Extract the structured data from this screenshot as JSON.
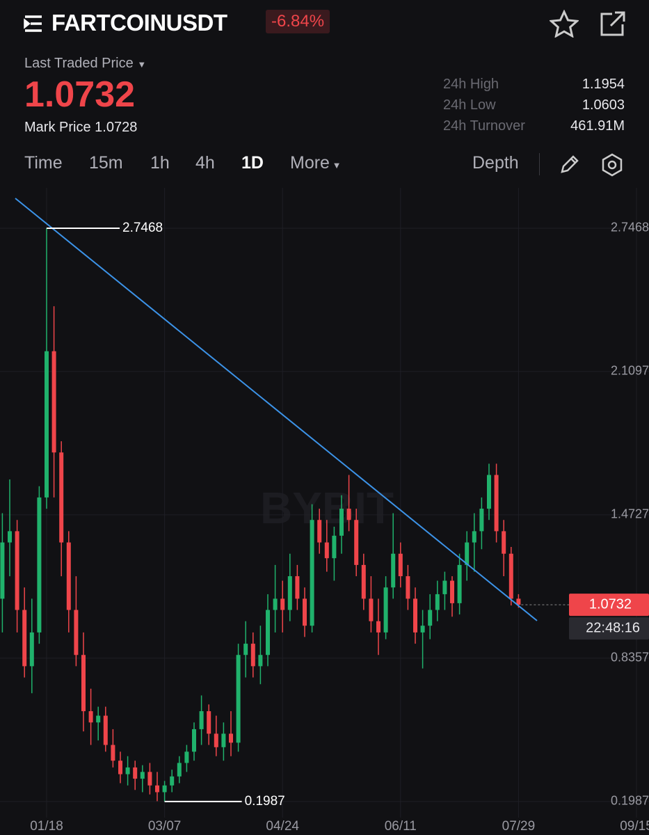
{
  "header": {
    "symbol": "FARTCOINUSDT",
    "change": "-6.84%",
    "price_label": "Last Traded Price",
    "last_price": "1.0732",
    "mark_label": "Mark Price",
    "mark_price": "1.0728"
  },
  "stats": [
    {
      "label": "24h High",
      "value": "1.1954"
    },
    {
      "label": "24h Low",
      "value": "1.0603"
    },
    {
      "label": "24h Turnover",
      "value": "461.91M"
    }
  ],
  "tabs": [
    "Time",
    "15m",
    "1h",
    "4h",
    "1D",
    "More",
    "Depth"
  ],
  "watermark": "BYBIT",
  "chart_data": {
    "type": "candlestick",
    "up_color": "#20b26c",
    "down_color": "#ef454a",
    "grid": true,
    "countdown": "22:48:16",
    "categories": [
      null,
      null,
      null,
      null,
      null,
      null,
      "01/18",
      null,
      null,
      null,
      null,
      null,
      null,
      null,
      null,
      null,
      null,
      null,
      null,
      null,
      null,
      null,
      "03/07",
      null,
      null,
      null,
      null,
      null,
      null,
      null,
      null,
      null,
      null,
      null,
      null,
      null,
      null,
      null,
      "04/24",
      null,
      null,
      null,
      null,
      null,
      null,
      null,
      null,
      null,
      null,
      null,
      null,
      null,
      null,
      null,
      "06/11",
      null,
      null,
      null,
      null,
      null,
      null,
      null,
      null,
      null,
      null,
      null,
      null,
      null,
      null,
      null,
      "07/29",
      null,
      null,
      null,
      null,
      null,
      null,
      null,
      null,
      null,
      null,
      null,
      null,
      null,
      null,
      null,
      "09/15"
    ],
    "open": [
      1.1,
      1.35,
      1.4,
      1.05,
      0.8,
      0.95,
      1.55,
      2.2,
      1.75,
      1.35,
      1.05,
      0.85,
      0.6,
      0.55,
      0.58,
      0.45,
      0.38,
      0.32,
      0.35,
      0.3,
      0.33,
      0.27,
      0.24,
      0.27,
      0.31,
      0.37,
      0.42,
      0.52,
      0.6,
      0.5,
      0.44,
      0.5,
      0.46,
      0.85,
      0.9,
      0.8,
      0.85,
      1.05,
      1.1,
      1.05,
      1.2,
      1.1,
      0.98,
      1.45,
      1.35,
      1.28,
      1.38,
      1.5,
      1.45,
      1.25,
      1.1,
      1.0,
      0.95,
      1.15,
      1.3,
      1.2,
      1.1,
      0.95,
      0.98,
      1.05,
      1.12,
      1.18,
      1.08,
      1.25,
      1.35,
      1.4,
      1.5,
      1.65,
      1.4,
      1.3,
      1.1,
      null,
      null,
      null,
      null,
      null,
      null,
      null,
      null,
      null,
      null,
      null,
      null,
      null,
      null,
      null,
      null
    ],
    "high": [
      1.48,
      1.63,
      1.45,
      1.15,
      1.1,
      1.6,
      2.7468,
      2.4,
      1.8,
      1.4,
      1.2,
      0.95,
      0.7,
      0.62,
      0.62,
      0.52,
      0.42,
      0.4,
      0.38,
      0.36,
      0.37,
      0.33,
      0.29,
      0.34,
      0.4,
      0.45,
      0.55,
      0.67,
      0.63,
      0.58,
      0.55,
      0.6,
      0.9,
      1.0,
      0.95,
      0.98,
      1.12,
      1.25,
      1.18,
      1.3,
      1.25,
      1.15,
      1.52,
      1.5,
      1.45,
      1.42,
      1.56,
      1.65,
      1.5,
      1.3,
      1.2,
      1.1,
      1.2,
      1.48,
      1.35,
      1.25,
      1.15,
      1.05,
      1.12,
      1.18,
      1.22,
      1.2,
      1.3,
      1.4,
      1.48,
      1.55,
      1.7,
      1.7,
      1.45,
      1.33,
      1.12,
      null,
      null,
      null,
      null,
      null,
      null,
      null,
      null,
      null,
      null,
      null,
      null,
      null,
      null,
      null,
      null
    ],
    "low": [
      0.95,
      1.2,
      0.95,
      0.75,
      0.68,
      0.9,
      1.5,
      1.55,
      1.2,
      0.95,
      0.8,
      0.51,
      0.45,
      0.47,
      0.42,
      0.35,
      0.28,
      0.27,
      0.25,
      0.24,
      0.23,
      0.2,
      0.1987,
      0.24,
      0.28,
      0.33,
      0.38,
      0.45,
      0.45,
      0.4,
      0.38,
      0.4,
      0.42,
      0.75,
      0.75,
      0.72,
      0.8,
      0.95,
      0.95,
      1.0,
      1.05,
      0.93,
      0.95,
      1.3,
      1.22,
      1.18,
      1.3,
      1.4,
      1.2,
      1.05,
      0.95,
      0.85,
      0.92,
      1.1,
      1.15,
      1.05,
      0.9,
      0.79,
      0.92,
      1.0,
      1.05,
      1.02,
      1.03,
      1.18,
      1.22,
      1.32,
      1.45,
      1.35,
      1.2,
      1.07,
      1.06,
      null,
      null,
      null,
      null,
      null,
      null,
      null,
      null,
      null,
      null,
      null,
      null,
      null,
      null,
      null,
      null
    ],
    "close": [
      1.35,
      1.4,
      1.05,
      0.8,
      0.95,
      1.55,
      2.2,
      1.75,
      1.35,
      1.05,
      0.85,
      0.6,
      0.55,
      0.58,
      0.45,
      0.38,
      0.32,
      0.35,
      0.3,
      0.33,
      0.27,
      0.24,
      0.27,
      0.31,
      0.37,
      0.42,
      0.52,
      0.6,
      0.5,
      0.44,
      0.5,
      0.46,
      0.85,
      0.9,
      0.8,
      0.85,
      1.05,
      1.1,
      1.05,
      1.2,
      1.1,
      0.98,
      1.45,
      1.35,
      1.28,
      1.38,
      1.5,
      1.45,
      1.25,
      1.1,
      1.0,
      0.95,
      1.15,
      1.3,
      1.2,
      1.1,
      0.95,
      0.98,
      1.05,
      1.12,
      1.18,
      1.08,
      1.25,
      1.35,
      1.4,
      1.5,
      1.65,
      1.4,
      1.3,
      1.1,
      1.0732,
      null,
      null,
      null,
      null,
      null,
      null,
      null,
      null,
      null,
      null,
      null,
      null,
      null,
      null,
      null,
      null
    ],
    "ylim": [
      0.127,
      2.926
    ],
    "yticks": [
      2.7468,
      2.1097,
      1.4727,
      0.8357,
      0.1987
    ]
  }
}
